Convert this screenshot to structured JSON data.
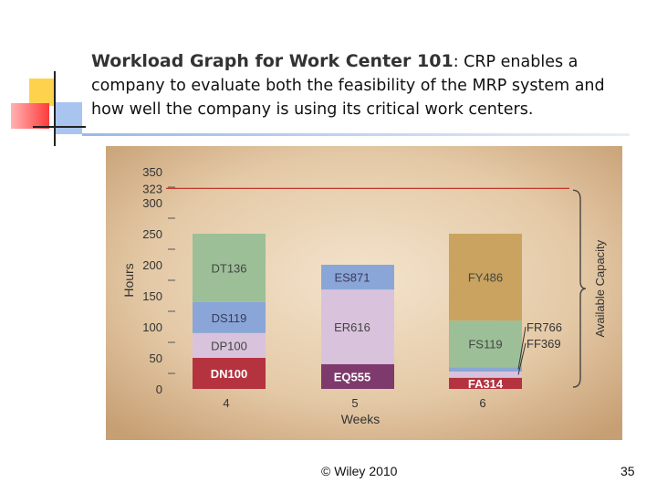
{
  "slide": {
    "title_bold": "Workload Graph for Work Center 101",
    "title_colon": ":",
    "title_rest": " CRP enables a company to evaluate both the feasibility of the MRP system and how well the company is using its critical work centers.",
    "footer_copyright": "© Wiley 2010",
    "page_number": "35"
  },
  "chart_data": {
    "type": "bar",
    "stacked": true,
    "ylabel": "Hours",
    "xlabel": "Weeks",
    "categories": [
      "4",
      "5",
      "6"
    ],
    "y_ticks": [
      0,
      50,
      100,
      150,
      200,
      250,
      300,
      323,
      350
    ],
    "ylim": [
      0,
      350
    ],
    "capacity_line": 323,
    "capacity_label": "Available Capacity",
    "stacks": [
      {
        "week": "4",
        "segments": [
          {
            "label": "DN100",
            "value": 100,
            "color": "#b5323f",
            "text_color": "#ffffff",
            "bold": true
          },
          {
            "label": "DP100",
            "value": 100,
            "color": "#d9c3dc",
            "text_color": "#444444"
          },
          {
            "label": "DS119",
            "value": 119,
            "color": "#8aa6d8",
            "text_color": "#3a3a5a"
          },
          {
            "label": "DT136",
            "value": 136,
            "color": "#9cbf97",
            "text_color": "#444444"
          }
        ]
      },
      {
        "week": "5",
        "segments": [
          {
            "label": "EQ555",
            "value": 555,
            "color": "#7e3a6c",
            "text_color": "#ffffff",
            "bold": true
          },
          {
            "label": "ER616",
            "value": 616,
            "color": "#d9c3dc",
            "text_color": "#444444"
          },
          {
            "label": "ES871",
            "value": 871,
            "color": "#8aa6d8",
            "text_color": "#3a3a5a"
          }
        ]
      },
      {
        "week": "6",
        "segments": [
          {
            "label": "FA314",
            "value": 314,
            "color": "#b5323f",
            "text_color": "#ffffff",
            "bold": true
          },
          {
            "label": "FF369",
            "value": 369,
            "color": "#d9c3dc",
            "text_color": "#444444",
            "outside": true
          },
          {
            "label": "FR766",
            "value": 766,
            "color": "#8aa6d8",
            "text_color": "#444444",
            "outside": true
          },
          {
            "label": "FS119",
            "value": 119,
            "color": "#9cbf97",
            "text_color": "#444444"
          },
          {
            "label": "FY486",
            "value": 486,
            "color": "#c9a35f",
            "text_color": "#444444"
          }
        ]
      }
    ],
    "segment_hours": {
      "4": [
        50,
        40,
        50,
        110
      ],
      "5": [
        40,
        120,
        40
      ],
      "6": [
        18,
        10,
        7,
        75,
        140
      ]
    }
  },
  "colors": {
    "background": "#ffffff",
    "panel_light": "#ecd9be",
    "panel_dark": "#c7a27a",
    "capacity_line": "#c0392b",
    "axis_text": "#333333",
    "deco_yellow": "#ffd700",
    "deco_red": "#ff3b3b",
    "deco_blue": "#5b8fd6"
  }
}
